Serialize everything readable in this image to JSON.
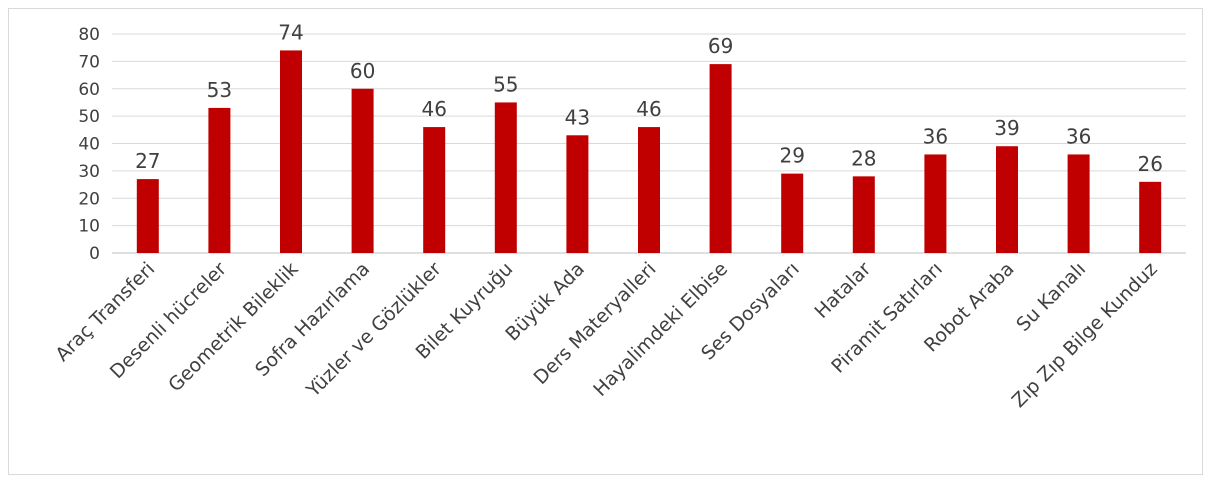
{
  "chart_data": {
    "type": "bar",
    "categories": [
      "Araç Transferi",
      "Desenli hücreler",
      "Geometrik Bileklik",
      "Sofra Hazırlama",
      "Yüzler ve Gözlükler",
      "Bilet Kuyruğu",
      "Büyük Ada",
      "Ders Materyalleri",
      "Hayalimdeki Elbise",
      "Ses Dosyaları",
      "Hatalar",
      "Piramit Satırları",
      "Robot Araba",
      "Su Kanalı",
      "Zıp Zıp Bilge Kunduz"
    ],
    "values": [
      27,
      53,
      74,
      60,
      46,
      55,
      43,
      46,
      69,
      29,
      28,
      36,
      39,
      36,
      26
    ],
    "value_labels": [
      "27",
      "53",
      "74",
      "60",
      "46",
      "55",
      "43",
      "46",
      "69",
      "29",
      "28",
      "36",
      "39",
      "36",
      "26"
    ],
    "y_ticks": [
      "0",
      "10",
      "20",
      "30",
      "40",
      "50",
      "60",
      "70",
      "80"
    ],
    "ylim": [
      0,
      80
    ],
    "grid": true,
    "legend": "none",
    "colors": {
      "bar": "#c00000",
      "grid": "#d9d9d9",
      "text": "#404040"
    }
  }
}
